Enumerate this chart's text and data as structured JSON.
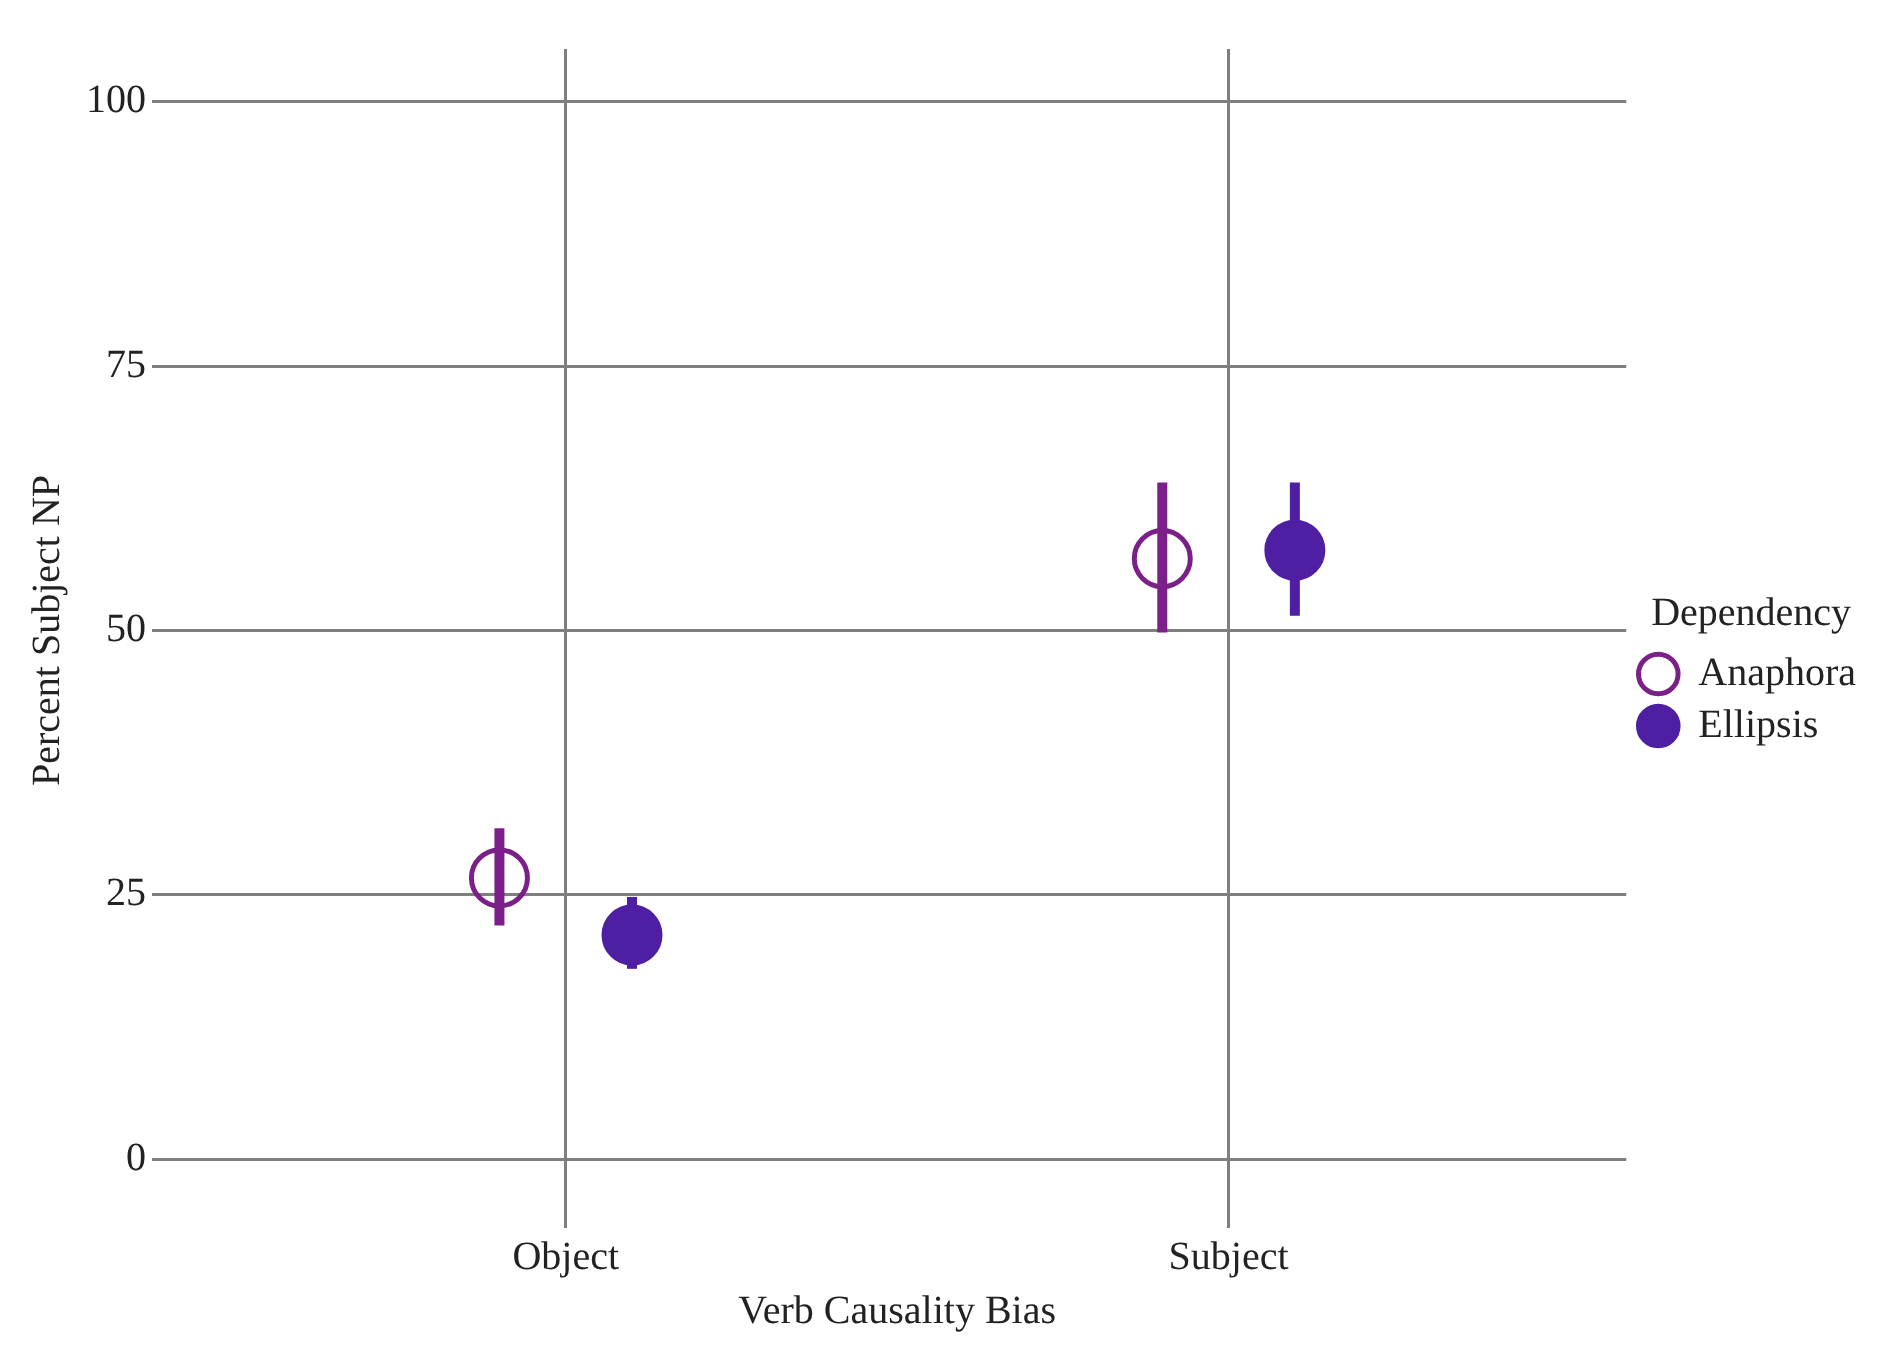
{
  "chart_data": {
    "type": "scatter",
    "xlabel": "Verb Causality Bias",
    "ylabel": "Percent Subject NP",
    "legend_title": "Dependency",
    "categories": [
      "Object",
      "Subject"
    ],
    "ylim": [
      -5,
      105
    ],
    "yticks": [
      0,
      25,
      50,
      75,
      100
    ],
    "grid": true,
    "legend": "right",
    "marker": "circle",
    "series": [
      {
        "name": "Anaphora",
        "color": "#7b2089",
        "values": [
          26.6,
          56.8
        ],
        "errors": [
          [
            22.1,
            31.3
          ],
          [
            49.8,
            64.0
          ]
        ]
      },
      {
        "name": "Ellipsis",
        "color": "#4f1fa3",
        "values": [
          21.2,
          57.6
        ],
        "errors": [
          [
            18.0,
            24.8
          ],
          [
            51.4,
            64.0
          ]
        ]
      }
    ]
  }
}
